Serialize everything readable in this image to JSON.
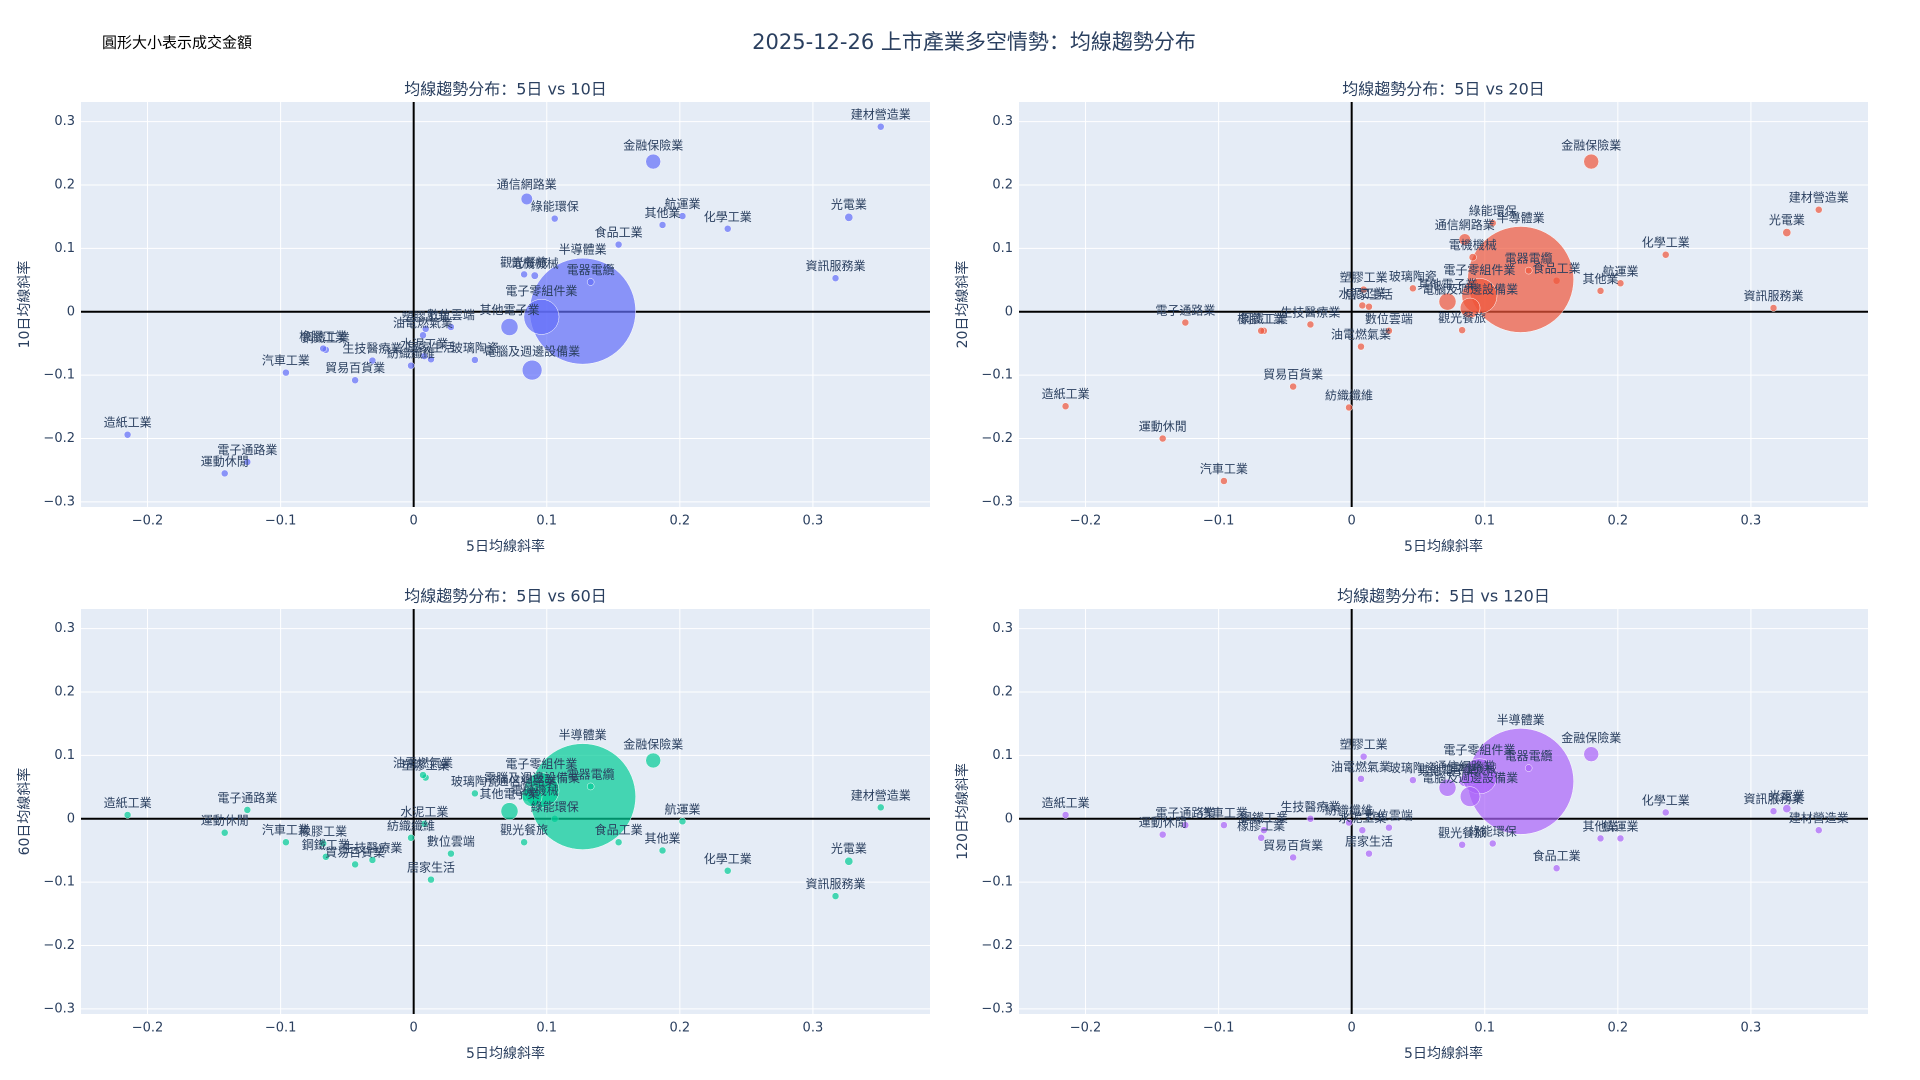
{
  "title": "2025-12-26 上市產業多空情勢：均線趨勢分布",
  "note": "圓形大小表示成交金額",
  "chart_data": [
    {
      "type": "scatter",
      "title": "均線趨勢分布：5日 vs 10日",
      "xlabel": "5日均線斜率",
      "ylabel": "10日均線斜率",
      "color": "#636efa",
      "xlim": [
        -0.25,
        0.388
      ],
      "ylim": [
        -0.308,
        0.331
      ],
      "xticks": [
        {
          "value": -0.2,
          "label": "−0.2"
        },
        {
          "value": -0.1,
          "label": "−0.1"
        },
        0,
        0.1,
        0.2,
        0.3
      ],
      "yticks": [
        {
          "value": -0.3,
          "label": "−0.3"
        },
        {
          "value": -0.2,
          "label": "−0.2"
        },
        {
          "value": -0.1,
          "label": "−0.1"
        },
        0,
        0.1,
        0.2,
        0.3
      ],
      "labels": [
        "建材營造業",
        "金融保險業",
        "光電業",
        "通信網路業",
        "綠能環保",
        "航運業",
        "其他業",
        "化學工業",
        "食品工業",
        "半導體業",
        "觀光餐旅",
        "電機機械",
        "電器電纜",
        "電子零組件業",
        "其他電子業",
        "電腦及週邊設備業",
        "玻璃陶瓷",
        "數位雲端",
        "塑膠工業",
        "油電燃氣業",
        "水泥工業",
        "居家生活",
        "紡織纖維",
        "鋼鐵工業",
        "橡膠工業",
        "生技醫療業",
        "貿易百貨業",
        "汽車工業",
        "造紙工業",
        "電子通路業",
        "運動休閒",
        "資訊服務業"
      ],
      "x": [
        0.351,
        0.18,
        0.327,
        0.085,
        0.106,
        0.202,
        0.187,
        0.236,
        0.154,
        0.127,
        0.083,
        0.091,
        0.133,
        0.096,
        0.072,
        0.089,
        0.046,
        0.028,
        0.009,
        0.007,
        0.008,
        0.013,
        -0.002,
        -0.066,
        -0.068,
        -0.031,
        -0.044,
        -0.096,
        -0.215,
        -0.125,
        -0.142,
        0.317
      ],
      "values": [
        0.292,
        0.237,
        0.149,
        0.178,
        0.147,
        0.151,
        0.137,
        0.131,
        0.106,
        0.001,
        0.059,
        0.057,
        0.047,
        -0.008,
        -0.024,
        -0.092,
        -0.076,
        -0.024,
        -0.027,
        -0.037,
        -0.07,
        -0.075,
        -0.085,
        -0.06,
        -0.058,
        -0.077,
        -0.108,
        -0.096,
        -0.194,
        -0.237,
        -0.255,
        0.053
      ],
      "sizes": [
        0.2,
        2.0,
        0.6,
        1.2,
        0.3,
        0.3,
        0.2,
        0.2,
        0.3,
        100,
        0.2,
        0.5,
        0.4,
        11,
        2.6,
        3.5,
        0.2,
        0.2,
        0.2,
        0.2,
        0.2,
        0.2,
        0.2,
        0.2,
        0.2,
        0.2,
        0.2,
        0.2,
        0.2,
        0.2,
        0.2,
        0.3
      ]
    },
    {
      "type": "scatter",
      "title": "均線趨勢分布：5日 vs 20日",
      "xlabel": "5日均線斜率",
      "ylabel": "20日均線斜率",
      "color": "#ef553b",
      "xlim": [
        -0.25,
        0.388
      ],
      "ylim": [
        -0.308,
        0.331
      ],
      "xticks": [
        {
          "value": -0.2,
          "label": "−0.2"
        },
        {
          "value": -0.1,
          "label": "−0.1"
        },
        0,
        0.1,
        0.2,
        0.3
      ],
      "yticks": [
        {
          "value": -0.3,
          "label": "−0.3"
        },
        {
          "value": -0.2,
          "label": "−0.2"
        },
        {
          "value": -0.1,
          "label": "−0.1"
        },
        0,
        0.1,
        0.2,
        0.3
      ],
      "labels": [
        "建材營造業",
        "金融保險業",
        "光電業",
        "通信網路業",
        "綠能環保",
        "航運業",
        "其他業",
        "化學工業",
        "食品工業",
        "半導體業",
        "觀光餐旅",
        "電機機械",
        "電器電纜",
        "電子零組件業",
        "其他電子業",
        "電腦及週邊設備業",
        "玻璃陶瓷",
        "數位雲端",
        "塑膠工業",
        "油電燃氣業",
        "水泥工業",
        "居家生活",
        "紡織纖維",
        "鋼鐵工業",
        "橡膠工業",
        "生技醫療業",
        "貿易百貨業",
        "汽車工業",
        "造紙工業",
        "電子通路業",
        "運動休閒",
        "資訊服務業"
      ],
      "x": [
        0.351,
        0.18,
        0.327,
        0.085,
        0.106,
        0.202,
        0.187,
        0.236,
        0.154,
        0.127,
        0.083,
        0.091,
        0.133,
        0.096,
        0.072,
        0.089,
        0.046,
        0.028,
        0.009,
        0.007,
        0.008,
        0.013,
        -0.002,
        -0.066,
        -0.068,
        -0.031,
        -0.044,
        -0.096,
        -0.215,
        -0.125,
        -0.142,
        0.317
      ],
      "values": [
        0.161,
        0.237,
        0.125,
        0.114,
        0.14,
        0.045,
        0.033,
        0.09,
        0.049,
        0.051,
        -0.029,
        0.086,
        0.065,
        0.025,
        0.016,
        0.006,
        0.037,
        -0.03,
        0.035,
        -0.055,
        0.01,
        0.008,
        -0.151,
        -0.03,
        -0.03,
        -0.02,
        -0.118,
        -0.267,
        -0.149,
        -0.017,
        -0.2,
        0.006
      ],
      "sizes": [
        0.2,
        2.0,
        0.6,
        1.2,
        0.3,
        0.3,
        0.2,
        0.2,
        0.3,
        100,
        0.2,
        0.5,
        0.4,
        11,
        2.6,
        3.5,
        0.2,
        0.2,
        0.2,
        0.2,
        0.2,
        0.2,
        0.2,
        0.2,
        0.2,
        0.2,
        0.2,
        0.2,
        0.2,
        0.2,
        0.2,
        0.3
      ]
    },
    {
      "type": "scatter",
      "title": "均線趨勢分布：5日 vs 60日",
      "xlabel": "5日均線斜率",
      "ylabel": "60日均線斜率",
      "color": "#00cc96",
      "xlim": [
        -0.25,
        0.388
      ],
      "ylim": [
        -0.308,
        0.331
      ],
      "xticks": [
        {
          "value": -0.2,
          "label": "−0.2"
        },
        {
          "value": -0.1,
          "label": "−0.1"
        },
        0,
        0.1,
        0.2,
        0.3
      ],
      "yticks": [
        {
          "value": -0.3,
          "label": "−0.3"
        },
        {
          "value": -0.2,
          "label": "−0.2"
        },
        {
          "value": -0.1,
          "label": "−0.1"
        },
        0,
        0.1,
        0.2,
        0.3
      ],
      "labels": [
        "建材營造業",
        "金融保險業",
        "光電業",
        "通信網路業",
        "綠能環保",
        "航運業",
        "其他業",
        "化學工業",
        "食品工業",
        "半導體業",
        "觀光餐旅",
        "電機機械",
        "電器電纜",
        "電子零組件業",
        "其他電子業",
        "電腦及週邊設備業",
        "玻璃陶瓷",
        "數位雲端",
        "塑膠工業",
        "油電燃氣業",
        "水泥工業",
        "居家生活",
        "紡織纖維",
        "鋼鐵工業",
        "橡膠工業",
        "生技醫療業",
        "貿易百貨業",
        "汽車工業",
        "造紙工業",
        "電子通路業",
        "運動休閒",
        "資訊服務業"
      ],
      "x": [
        0.351,
        0.18,
        0.327,
        0.085,
        0.106,
        0.202,
        0.187,
        0.236,
        0.154,
        0.127,
        0.083,
        0.091,
        0.133,
        0.096,
        0.072,
        0.089,
        0.046,
        0.028,
        0.009,
        0.007,
        0.008,
        0.013,
        -0.002,
        -0.066,
        -0.068,
        -0.031,
        -0.044,
        -0.096,
        -0.215,
        -0.125,
        -0.142,
        0.317
      ],
      "values": [
        0.018,
        0.092,
        -0.067,
        0.037,
        0.0,
        -0.004,
        -0.05,
        -0.082,
        -0.037,
        0.035,
        -0.037,
        0.025,
        0.051,
        0.045,
        0.012,
        0.035,
        0.04,
        -0.055,
        0.065,
        0.069,
        -0.008,
        -0.096,
        -0.03,
        -0.06,
        -0.039,
        -0.065,
        -0.072,
        -0.037,
        0.006,
        0.014,
        -0.022,
        -0.122
      ],
      "sizes": [
        0.2,
        2.0,
        0.6,
        1.2,
        0.3,
        0.3,
        0.2,
        0.2,
        0.3,
        100,
        0.2,
        0.5,
        0.4,
        11,
        2.6,
        3.5,
        0.2,
        0.2,
        0.2,
        0.2,
        0.2,
        0.2,
        0.2,
        0.2,
        0.2,
        0.2,
        0.2,
        0.2,
        0.2,
        0.2,
        0.2,
        0.3
      ]
    },
    {
      "type": "scatter",
      "title": "均線趨勢分布：5日 vs 120日",
      "xlabel": "5日均線斜率",
      "ylabel": "120日均線斜率",
      "color": "#ab63fa",
      "xlim": [
        -0.25,
        0.388
      ],
      "ylim": [
        -0.308,
        0.331
      ],
      "xticks": [
        {
          "value": -0.2,
          "label": "−0.2"
        },
        {
          "value": -0.1,
          "label": "−0.1"
        },
        0,
        0.1,
        0.2,
        0.3
      ],
      "yticks": [
        {
          "value": -0.3,
          "label": "−0.3"
        },
        {
          "value": -0.2,
          "label": "−0.2"
        },
        {
          "value": -0.1,
          "label": "−0.1"
        },
        0,
        0.1,
        0.2,
        0.3
      ],
      "labels": [
        "建材營造業",
        "金融保險業",
        "光電業",
        "通信網路業",
        "綠能環保",
        "航運業",
        "其他業",
        "化學工業",
        "食品工業",
        "半導體業",
        "觀光餐旅",
        "電機機械",
        "電器電纜",
        "電子零組件業",
        "其他電子業",
        "電腦及週邊設備業",
        "玻璃陶瓷",
        "數位雲端",
        "塑膠工業",
        "油電燃氣業",
        "水泥工業",
        "居家生活",
        "紡織纖維",
        "鋼鐵工業",
        "橡膠工業",
        "生技醫療業",
        "貿易百貨業",
        "汽車工業",
        "造紙工業",
        "電子通路業",
        "運動休閒",
        "資訊服務業"
      ],
      "x": [
        0.351,
        0.18,
        0.327,
        0.085,
        0.106,
        0.202,
        0.187,
        0.236,
        0.154,
        0.127,
        0.083,
        0.091,
        0.133,
        0.096,
        0.072,
        0.089,
        0.046,
        0.028,
        0.009,
        0.007,
        0.008,
        0.013,
        -0.002,
        -0.066,
        -0.068,
        -0.031,
        -0.044,
        -0.096,
        -0.215,
        -0.125,
        -0.142,
        0.317
      ],
      "values": [
        -0.018,
        0.102,
        0.016,
        0.06,
        -0.039,
        -0.031,
        -0.031,
        0.01,
        -0.078,
        0.059,
        -0.041,
        0.06,
        0.08,
        0.067,
        0.049,
        0.035,
        0.061,
        -0.014,
        0.098,
        0.063,
        -0.018,
        -0.055,
        -0.006,
        -0.018,
        -0.03,
        0.0,
        -0.061,
        -0.01,
        0.006,
        -0.01,
        -0.025,
        0.012
      ],
      "sizes": [
        0.2,
        2.0,
        0.6,
        1.2,
        0.3,
        0.3,
        0.2,
        0.2,
        0.3,
        100,
        0.2,
        0.5,
        0.4,
        11,
        2.6,
        3.5,
        0.2,
        0.2,
        0.2,
        0.2,
        0.2,
        0.2,
        0.2,
        0.2,
        0.2,
        0.2,
        0.2,
        0.2,
        0.2,
        0.2,
        0.2,
        0.3
      ]
    }
  ]
}
